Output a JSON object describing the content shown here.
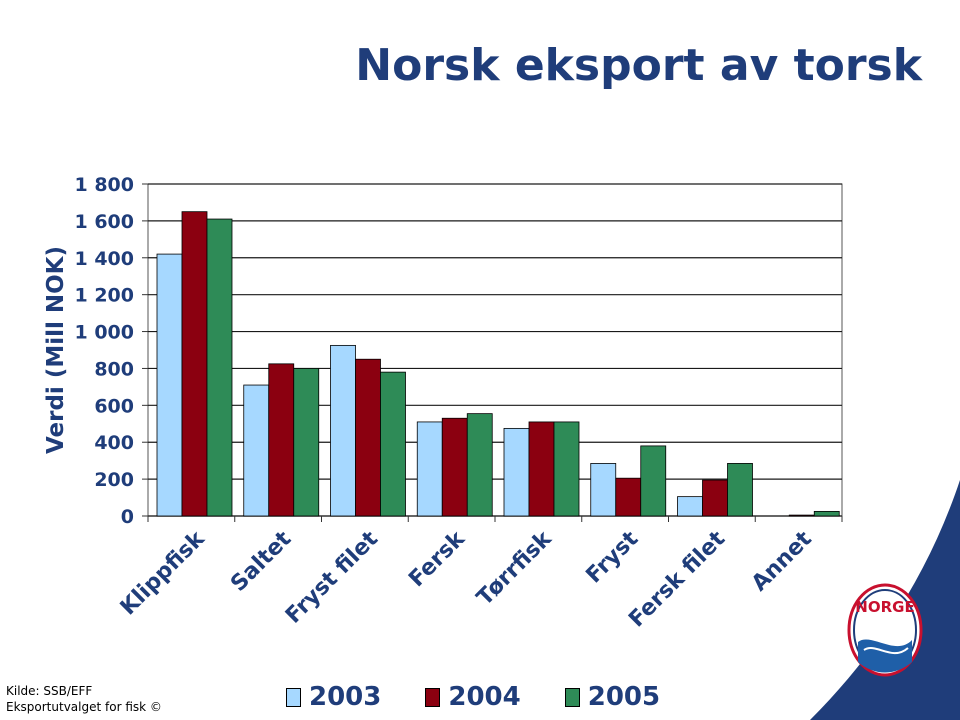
{
  "title": "Norsk eksport av torsk",
  "source_line1": "Kilde: SSB/EFF",
  "source_line2": "Eksportutvalget for fisk ©",
  "logo_text": "NORGE",
  "chart_data": {
    "type": "bar",
    "ylabel": "Verdi (Mill NOK)",
    "xlabel": "",
    "ylim": [
      0,
      1800
    ],
    "yticks": [
      0,
      200,
      400,
      600,
      800,
      1000,
      1200,
      1400,
      1600,
      1800
    ],
    "ytick_labels": [
      "0",
      "200",
      "400",
      "600",
      "800",
      "1 000",
      "1 200",
      "1 400",
      "1 600",
      "1 800"
    ],
    "grid": true,
    "legend_position": "bottom",
    "categories": [
      "Klippfisk",
      "Saltet",
      "Fryst filet",
      "Fersk",
      "Tørrfisk",
      "Fryst",
      "Fersk filet",
      "Annet"
    ],
    "series": [
      {
        "name": "2003",
        "color": "#a6d8ff",
        "values": [
          1420,
          710,
          925,
          510,
          475,
          285,
          105,
          0
        ]
      },
      {
        "name": "2004",
        "color": "#8b0010",
        "values": [
          1650,
          825,
          850,
          530,
          510,
          205,
          195,
          5
        ]
      },
      {
        "name": "2005",
        "color": "#2e8b57",
        "values": [
          1610,
          800,
          780,
          555,
          510,
          380,
          285,
          25
        ]
      }
    ]
  }
}
